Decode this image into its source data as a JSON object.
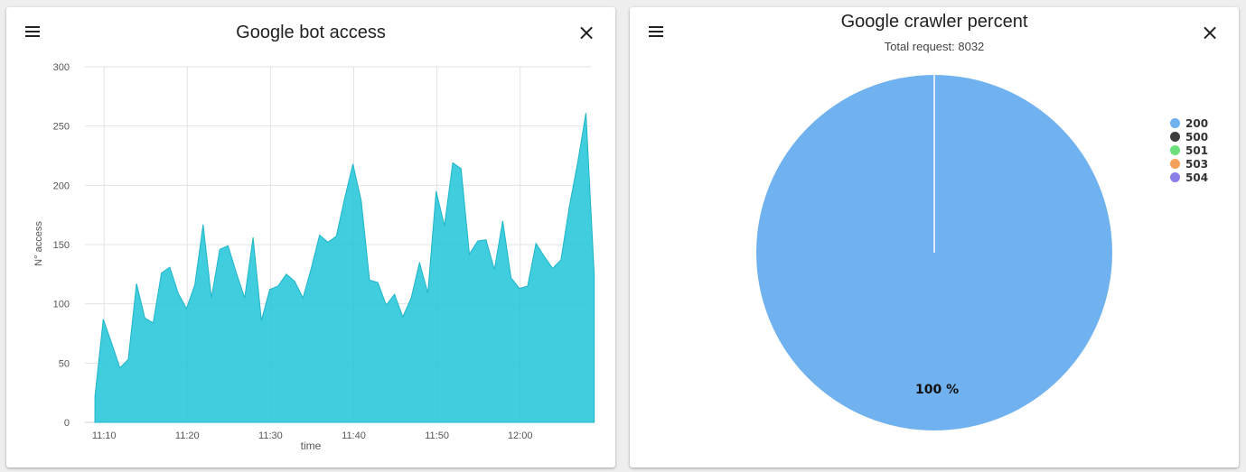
{
  "left_card": {
    "title": "Google bot access",
    "menu_icon": "hamburger-menu-icon",
    "close_icon": "close-icon",
    "close_glyph": "×"
  },
  "right_card": {
    "title": "Google crawler percent",
    "subtitle": "Total request: 8032",
    "menu_icon": "hamburger-menu-icon",
    "close_icon": "close-icon",
    "close_glyph": "×"
  },
  "chart_data": [
    {
      "type": "area",
      "title": "Google bot access",
      "xlabel": "time",
      "ylabel": "N° access",
      "ylim": [
        0,
        300
      ],
      "yticks": [
        0,
        50,
        100,
        150,
        200,
        250,
        300
      ],
      "xticks": [
        "11:10",
        "11:20",
        "11:30",
        "11:40",
        "11:50",
        "12:00"
      ],
      "grid": true,
      "color": "#26c6da",
      "x_unit": "minutes after 11:00",
      "x_start": 8.9,
      "x_step": 1,
      "values": [
        22,
        87,
        67,
        46,
        53,
        117,
        88,
        84,
        126,
        131,
        109,
        96,
        116,
        167,
        105,
        146,
        149,
        126,
        105,
        156,
        86,
        112,
        115,
        125,
        119,
        105,
        130,
        158,
        152,
        157,
        189,
        218,
        187,
        120,
        118,
        99,
        108,
        89,
        105,
        135,
        109,
        195,
        166,
        219,
        214,
        142,
        153,
        154,
        129,
        170,
        122,
        113,
        115,
        151,
        140,
        130,
        137,
        182,
        219,
        261,
        124
      ]
    },
    {
      "type": "pie",
      "title": "Google crawler percent",
      "subtitle": "Total request: 8032",
      "legend_position": "right",
      "slices": [
        {
          "label": "200",
          "value": 100,
          "color": "#70b1ef"
        },
        {
          "label": "500",
          "value": 0,
          "color": "#3d3d3d"
        },
        {
          "label": "501",
          "value": 0,
          "color": "#6be07a"
        },
        {
          "label": "503",
          "value": 0,
          "color": "#f5a05a"
        },
        {
          "label": "504",
          "value": 0,
          "color": "#8a7fe8"
        }
      ],
      "data_labels": [
        "100 %"
      ]
    }
  ]
}
